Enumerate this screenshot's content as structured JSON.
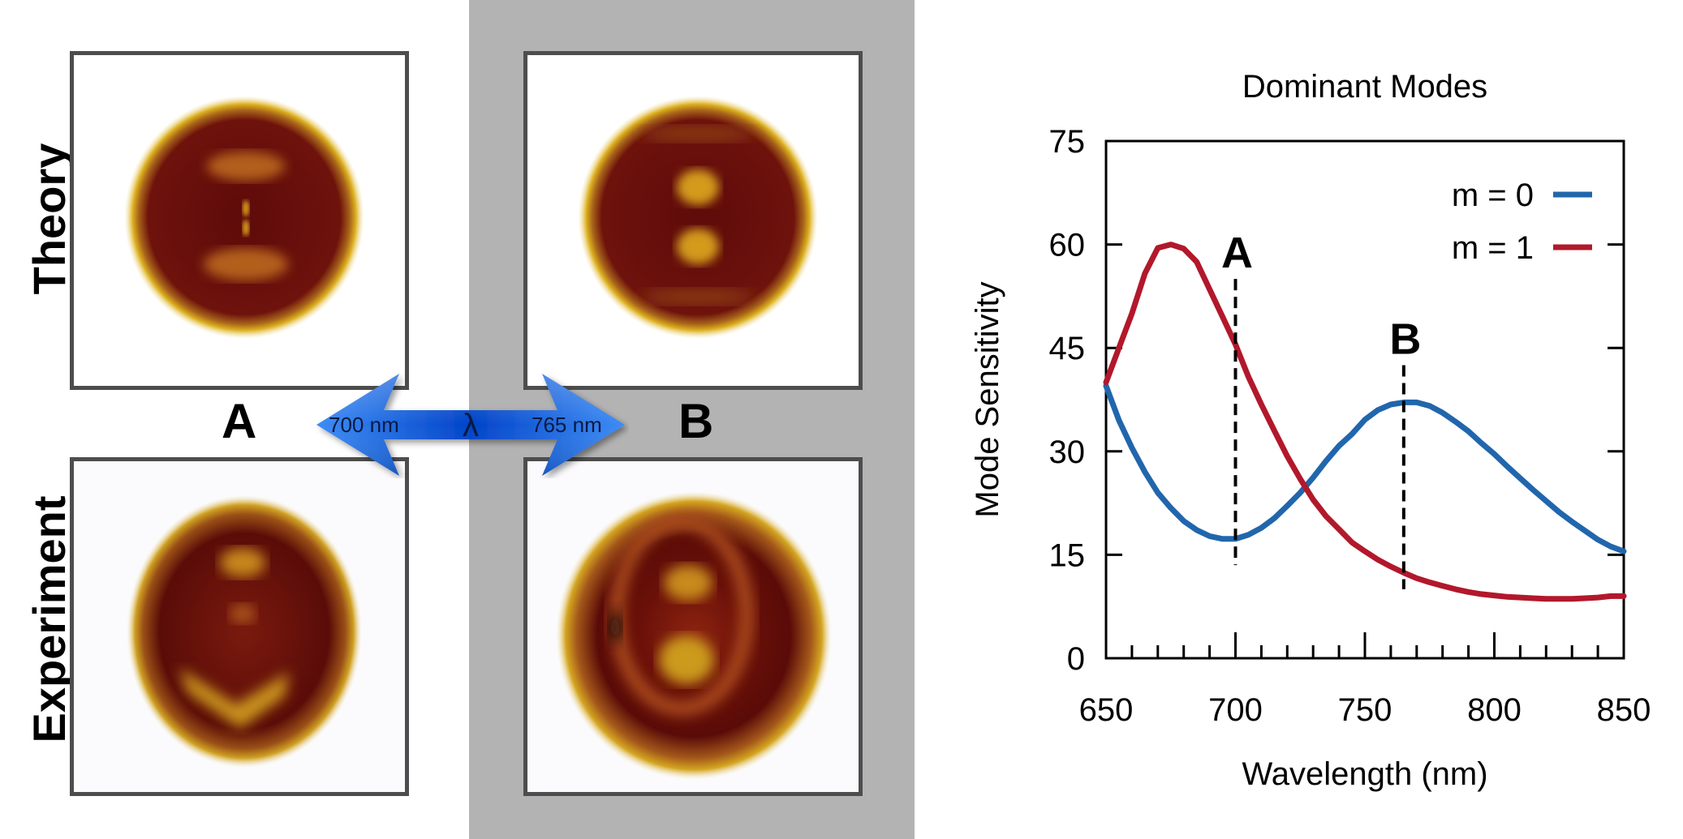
{
  "figure": {
    "row_labels": [
      "Theory",
      "Experiment"
    ],
    "column_labels": [
      "A",
      "B"
    ],
    "wavelength_arrow": {
      "left_label": "700 nm",
      "center_symbol": "λ",
      "right_label": "765 nm",
      "color": "#1a5fe0"
    },
    "panels": [
      {
        "id": "theory-A",
        "row": "Theory",
        "column": "A",
        "description": "simulated field map, dark-red disk with gold rim, two faint lobes and central dipole point"
      },
      {
        "id": "theory-B",
        "row": "Theory",
        "column": "B",
        "description": "simulated field map, dark-red disk with gold rim, two bright central lobes"
      },
      {
        "id": "experiment-A",
        "row": "Experiment",
        "column": "A",
        "description": "measured map, dark-red disk with gold rim and bright lower chevron"
      },
      {
        "id": "experiment-B",
        "row": "Experiment",
        "column": "B",
        "description": "measured map, dark-red disk with gold rim and bright vertical double lobe"
      }
    ],
    "colors": {
      "rim": "#d9ad1a",
      "interior": "#6a0e0a",
      "lobe": "#b35a1a",
      "band": "#b3b3b3",
      "frame": "#4d4d4d"
    }
  },
  "chart_data": {
    "type": "line",
    "title": "Dominant Modes",
    "xlabel": "Wavelength (nm)",
    "ylabel": "Mode Sensitivity",
    "xlim": [
      650,
      850
    ],
    "ylim": [
      0,
      75
    ],
    "xticks": [
      650,
      700,
      750,
      800,
      850
    ],
    "yticks": [
      0,
      15,
      30,
      45,
      60,
      75
    ],
    "x_minor_step": 10,
    "grid": false,
    "legend": {
      "position": "top-right",
      "entries": [
        "m = 0",
        "m = 1"
      ]
    },
    "series": [
      {
        "name": "m = 0",
        "color": "#2166ac",
        "x": [
          650,
          655,
          660,
          665,
          670,
          675,
          680,
          685,
          690,
          695,
          700,
          705,
          710,
          715,
          720,
          725,
          730,
          735,
          740,
          745,
          750,
          755,
          760,
          765,
          770,
          775,
          780,
          785,
          790,
          795,
          800,
          805,
          810,
          815,
          820,
          825,
          830,
          835,
          840,
          845,
          850
        ],
        "values": [
          39.5,
          34.5,
          30.5,
          27.0,
          24.0,
          21.8,
          19.9,
          18.6,
          17.7,
          17.3,
          17.3,
          17.9,
          18.9,
          20.3,
          22.1,
          24.0,
          26.2,
          28.6,
          30.8,
          32.5,
          34.6,
          36.0,
          36.8,
          37.1,
          37.1,
          36.6,
          35.6,
          34.3,
          32.9,
          31.2,
          29.6,
          27.8,
          26.1,
          24.4,
          22.8,
          21.2,
          19.8,
          18.5,
          17.2,
          16.2,
          15.5
        ]
      },
      {
        "name": "m = 1",
        "color": "#b2182b",
        "x": [
          650,
          655,
          660,
          665,
          670,
          675,
          680,
          685,
          690,
          695,
          700,
          705,
          710,
          715,
          720,
          725,
          730,
          735,
          740,
          745,
          750,
          755,
          760,
          765,
          770,
          775,
          780,
          785,
          790,
          795,
          800,
          805,
          810,
          815,
          820,
          825,
          830,
          835,
          840,
          845,
          850
        ],
        "values": [
          40.0,
          45.0,
          50.0,
          55.8,
          59.5,
          60.0,
          59.4,
          57.5,
          53.5,
          49.5,
          45.5,
          40.8,
          36.8,
          33.0,
          29.3,
          26.0,
          23.0,
          20.6,
          18.7,
          16.8,
          15.5,
          14.3,
          13.3,
          12.4,
          11.6,
          11.0,
          10.5,
          10.0,
          9.6,
          9.3,
          9.1,
          8.9,
          8.8,
          8.7,
          8.6,
          8.6,
          8.6,
          8.7,
          8.8,
          9.0,
          9.0
        ]
      }
    ],
    "annotations": [
      {
        "label": "A",
        "x": 700,
        "y_from": 13.5,
        "y_to": 55,
        "style": "dashed"
      },
      {
        "label": "B",
        "x": 765,
        "y_from": 10,
        "y_to": 42.5,
        "style": "dashed"
      }
    ]
  }
}
